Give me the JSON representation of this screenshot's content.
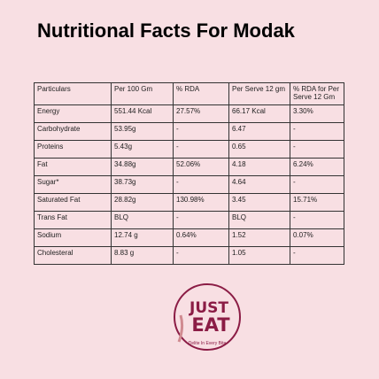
{
  "title": "Nutritional Facts For Modak",
  "table": {
    "header": [
      "Particulars",
      "Per 100 Gm",
      "% RDA",
      "Per Serve 12 gm",
      "% RDA   for Per Serve 12 Gm"
    ],
    "rows": [
      [
        "Energy",
        "551.44 Kcal",
        "27.57%",
        "66.17 Kcal",
        "3.30%"
      ],
      [
        "Carbohydrate",
        "53.95g",
        "-",
        "6.47",
        "-"
      ],
      [
        "Proteins",
        "5.43g",
        "-",
        "0.65",
        "-"
      ],
      [
        "Fat",
        "34.88g",
        "52.06%",
        "4.18",
        "6.24%"
      ],
      [
        "Sugar*",
        "38.73g",
        "-",
        "4.64",
        "-"
      ],
      [
        "Saturated Fat",
        "28.82g",
        "130.98%",
        "3.45",
        "15.71%"
      ],
      [
        "Trans Fat",
        "BLQ",
        "-",
        "BLQ",
        "-"
      ],
      [
        "Sodium",
        "12.74 g",
        "0.64%",
        "1.52",
        "0.07%"
      ],
      [
        "Cholesteral",
        "8.83 g",
        "-",
        "1.05",
        "-"
      ]
    ]
  },
  "logo": {
    "line1": "JUST",
    "line2": "EAT",
    "tagline": "Delite In Every Bite"
  }
}
